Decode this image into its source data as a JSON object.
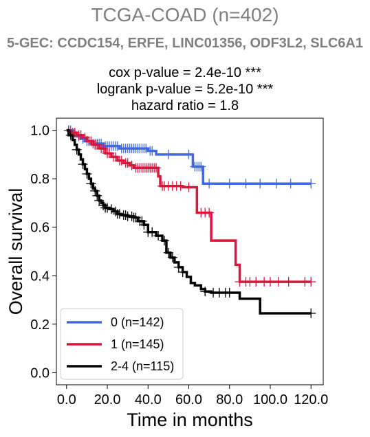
{
  "header": {
    "title": "TCGA-COAD (n=402)",
    "subtitle": "5-GEC: CCDC154, ERFE, LINC01356, ODF3L2, SLC6A1"
  },
  "stats": {
    "cox": "cox p-value = 2.4e-10 ***",
    "logrank": "logrank p-value = 5.2e-10 ***",
    "hazard": "hazard ratio = 1.8"
  },
  "chart_data": {
    "type": "line",
    "subtype": "kaplan-meier",
    "xlabel": "Time in months",
    "ylabel": "Overall survival",
    "xlim": [
      -5,
      126
    ],
    "ylim": [
      -0.05,
      1.05
    ],
    "xticks": [
      0,
      20,
      40,
      60,
      80,
      100,
      120
    ],
    "xtick_labels": [
      "0.0",
      "20.0",
      "40.0",
      "60.0",
      "80.0",
      "100.0",
      "120.0"
    ],
    "yticks": [
      0,
      0.2,
      0.4,
      0.6,
      0.8,
      1.0
    ],
    "ytick_labels": [
      "0.0",
      "0.2",
      "0.4",
      "0.6",
      "0.8",
      "1.0"
    ],
    "legend_position": "lower-left",
    "series": [
      {
        "name": "0 (n=142)",
        "color": "#4169e1",
        "steps": [
          [
            0,
            1.0
          ],
          [
            3,
            0.99
          ],
          [
            5,
            0.975
          ],
          [
            7,
            0.965
          ],
          [
            9,
            0.955
          ],
          [
            12,
            0.945
          ],
          [
            18,
            0.935
          ],
          [
            26,
            0.925
          ],
          [
            40,
            0.915
          ],
          [
            44,
            0.9
          ],
          [
            62,
            0.85
          ],
          [
            67,
            0.78
          ],
          [
            120,
            0.78
          ]
        ],
        "censor_times": [
          1,
          2,
          4,
          6,
          8,
          10,
          11,
          13,
          14,
          15,
          16,
          17,
          19,
          20,
          21,
          22,
          23,
          24,
          25,
          27,
          28,
          29,
          30,
          31,
          32,
          33,
          34,
          35,
          36,
          37,
          38,
          39,
          41,
          42,
          50,
          60,
          63,
          64,
          65,
          66,
          70,
          80,
          88,
          95,
          103,
          110,
          120
        ]
      },
      {
        "name": "1 (n=145)",
        "color": "#dc143c",
        "steps": [
          [
            0,
            1.0
          ],
          [
            2,
            0.99
          ],
          [
            5,
            0.98
          ],
          [
            8,
            0.97
          ],
          [
            10,
            0.955
          ],
          [
            13,
            0.94
          ],
          [
            16,
            0.925
          ],
          [
            19,
            0.905
          ],
          [
            22,
            0.89
          ],
          [
            25,
            0.875
          ],
          [
            28,
            0.865
          ],
          [
            31,
            0.855
          ],
          [
            33,
            0.845
          ],
          [
            45,
            0.81
          ],
          [
            46,
            0.77
          ],
          [
            57,
            0.765
          ],
          [
            64,
            0.66
          ],
          [
            71,
            0.545
          ],
          [
            83,
            0.445
          ],
          [
            85,
            0.375
          ],
          [
            120,
            0.375
          ]
        ],
        "censor_times": [
          1,
          3,
          4,
          6,
          7,
          9,
          11,
          12,
          14,
          15,
          17,
          18,
          20,
          21,
          23,
          24,
          26,
          27,
          29,
          30,
          32,
          34,
          35,
          36,
          37,
          38,
          39,
          40,
          41,
          42,
          43,
          44,
          47,
          48,
          50,
          52,
          54,
          56,
          60,
          66,
          68,
          70,
          85,
          88,
          90,
          93,
          97,
          100,
          104,
          109,
          117,
          120
        ]
      },
      {
        "name": "2-4 (n=115)",
        "color": "#000000",
        "steps": [
          [
            0,
            1.0
          ],
          [
            1,
            0.98
          ],
          [
            3,
            0.96
          ],
          [
            4,
            0.94
          ],
          [
            5,
            0.92
          ],
          [
            6,
            0.9
          ],
          [
            7,
            0.88
          ],
          [
            8,
            0.86
          ],
          [
            9,
            0.84
          ],
          [
            10,
            0.82
          ],
          [
            11,
            0.8
          ],
          [
            12,
            0.78
          ],
          [
            13,
            0.76
          ],
          [
            14,
            0.75
          ],
          [
            15,
            0.73
          ],
          [
            16,
            0.71
          ],
          [
            17,
            0.7
          ],
          [
            18,
            0.69
          ],
          [
            19,
            0.68
          ],
          [
            21,
            0.675
          ],
          [
            23,
            0.665
          ],
          [
            25,
            0.655
          ],
          [
            27,
            0.65
          ],
          [
            30,
            0.645
          ],
          [
            33,
            0.64
          ],
          [
            35,
            0.625
          ],
          [
            38,
            0.61
          ],
          [
            40,
            0.58
          ],
          [
            44,
            0.565
          ],
          [
            47,
            0.545
          ],
          [
            49,
            0.495
          ],
          [
            51,
            0.475
          ],
          [
            53,
            0.455
          ],
          [
            55,
            0.435
          ],
          [
            57,
            0.415
          ],
          [
            59,
            0.395
          ],
          [
            61,
            0.37
          ],
          [
            63,
            0.36
          ],
          [
            66,
            0.345
          ],
          [
            68,
            0.335
          ],
          [
            71,
            0.33
          ],
          [
            85,
            0.305
          ],
          [
            95,
            0.245
          ],
          [
            120,
            0.245
          ]
        ],
        "censor_times": [
          2,
          5,
          8,
          10,
          12,
          14,
          15,
          16,
          18,
          19,
          20,
          22,
          24,
          25,
          26,
          28,
          29,
          30,
          32,
          33,
          34,
          36,
          37,
          38,
          40,
          42,
          45,
          48,
          50,
          52,
          55,
          57,
          68,
          72,
          75,
          78,
          80,
          120
        ]
      }
    ]
  }
}
